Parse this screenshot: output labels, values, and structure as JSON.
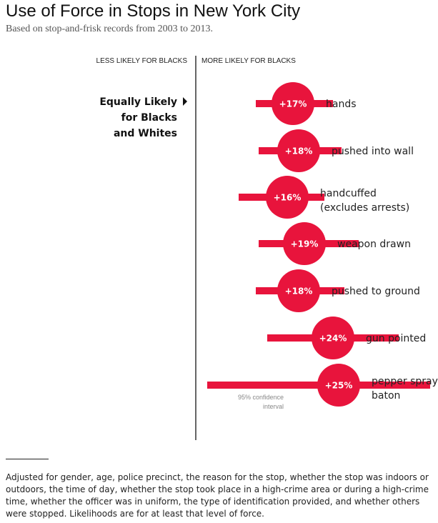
{
  "title": "Use of Force in Stops in New York City",
  "subtitle": "Based on stop-and-frisk records from 2003 to 2013.",
  "footnote": "Adjusted for gender, age, police precinct, the reason for the stop, whether the stop was indoors or outdoors, the time of day, whether the stop took place in a high-crime area or during a high-crime time, whether the officer was in uniform, the type of identification provided, and whether others were stopped. Likelihoods are for at least that level of force.",
  "colors": {
    "accent": "#e8143c",
    "text": "#222222",
    "axis": "#333333"
  },
  "chart_data": {
    "type": "scatter",
    "left_header": "LESS LIKELY FOR BLACKS",
    "right_header": "MORE LIKELY FOR BLACKS",
    "equal_label": [
      "Equally Likely",
      "for Blacks",
      "and Whites"
    ],
    "equal_marker": "triangle-right-icon",
    "ci_annotation": [
      "95% confidence",
      "interval"
    ],
    "xlim": [
      0,
      41
    ],
    "series": [
      {
        "label": [
          "hands"
        ],
        "value": 17,
        "display": "+17%",
        "ci": [
          10.5,
          24
        ]
      },
      {
        "label": [
          "pushed into wall"
        ],
        "value": 18,
        "display": "+18%",
        "ci": [
          11,
          25.5
        ]
      },
      {
        "label": [
          "handcuffed",
          "(excludes arrests)"
        ],
        "value": 16,
        "display": "+16%",
        "ci": [
          7.5,
          22.5
        ]
      },
      {
        "label": [
          "weapon drawn"
        ],
        "value": 19,
        "display": "+19%",
        "ci": [
          11,
          28.5
        ]
      },
      {
        "label": [
          "pushed to ground"
        ],
        "value": 18,
        "display": "+18%",
        "ci": [
          10.5,
          26
        ]
      },
      {
        "label": [
          "gun pointed"
        ],
        "value": 24,
        "display": "+24%",
        "ci": [
          12.5,
          35.5
        ]
      },
      {
        "label": [
          "pepper spray,",
          "baton"
        ],
        "value": 25,
        "display": "+25%",
        "ci": [
          2,
          41
        ]
      }
    ]
  }
}
